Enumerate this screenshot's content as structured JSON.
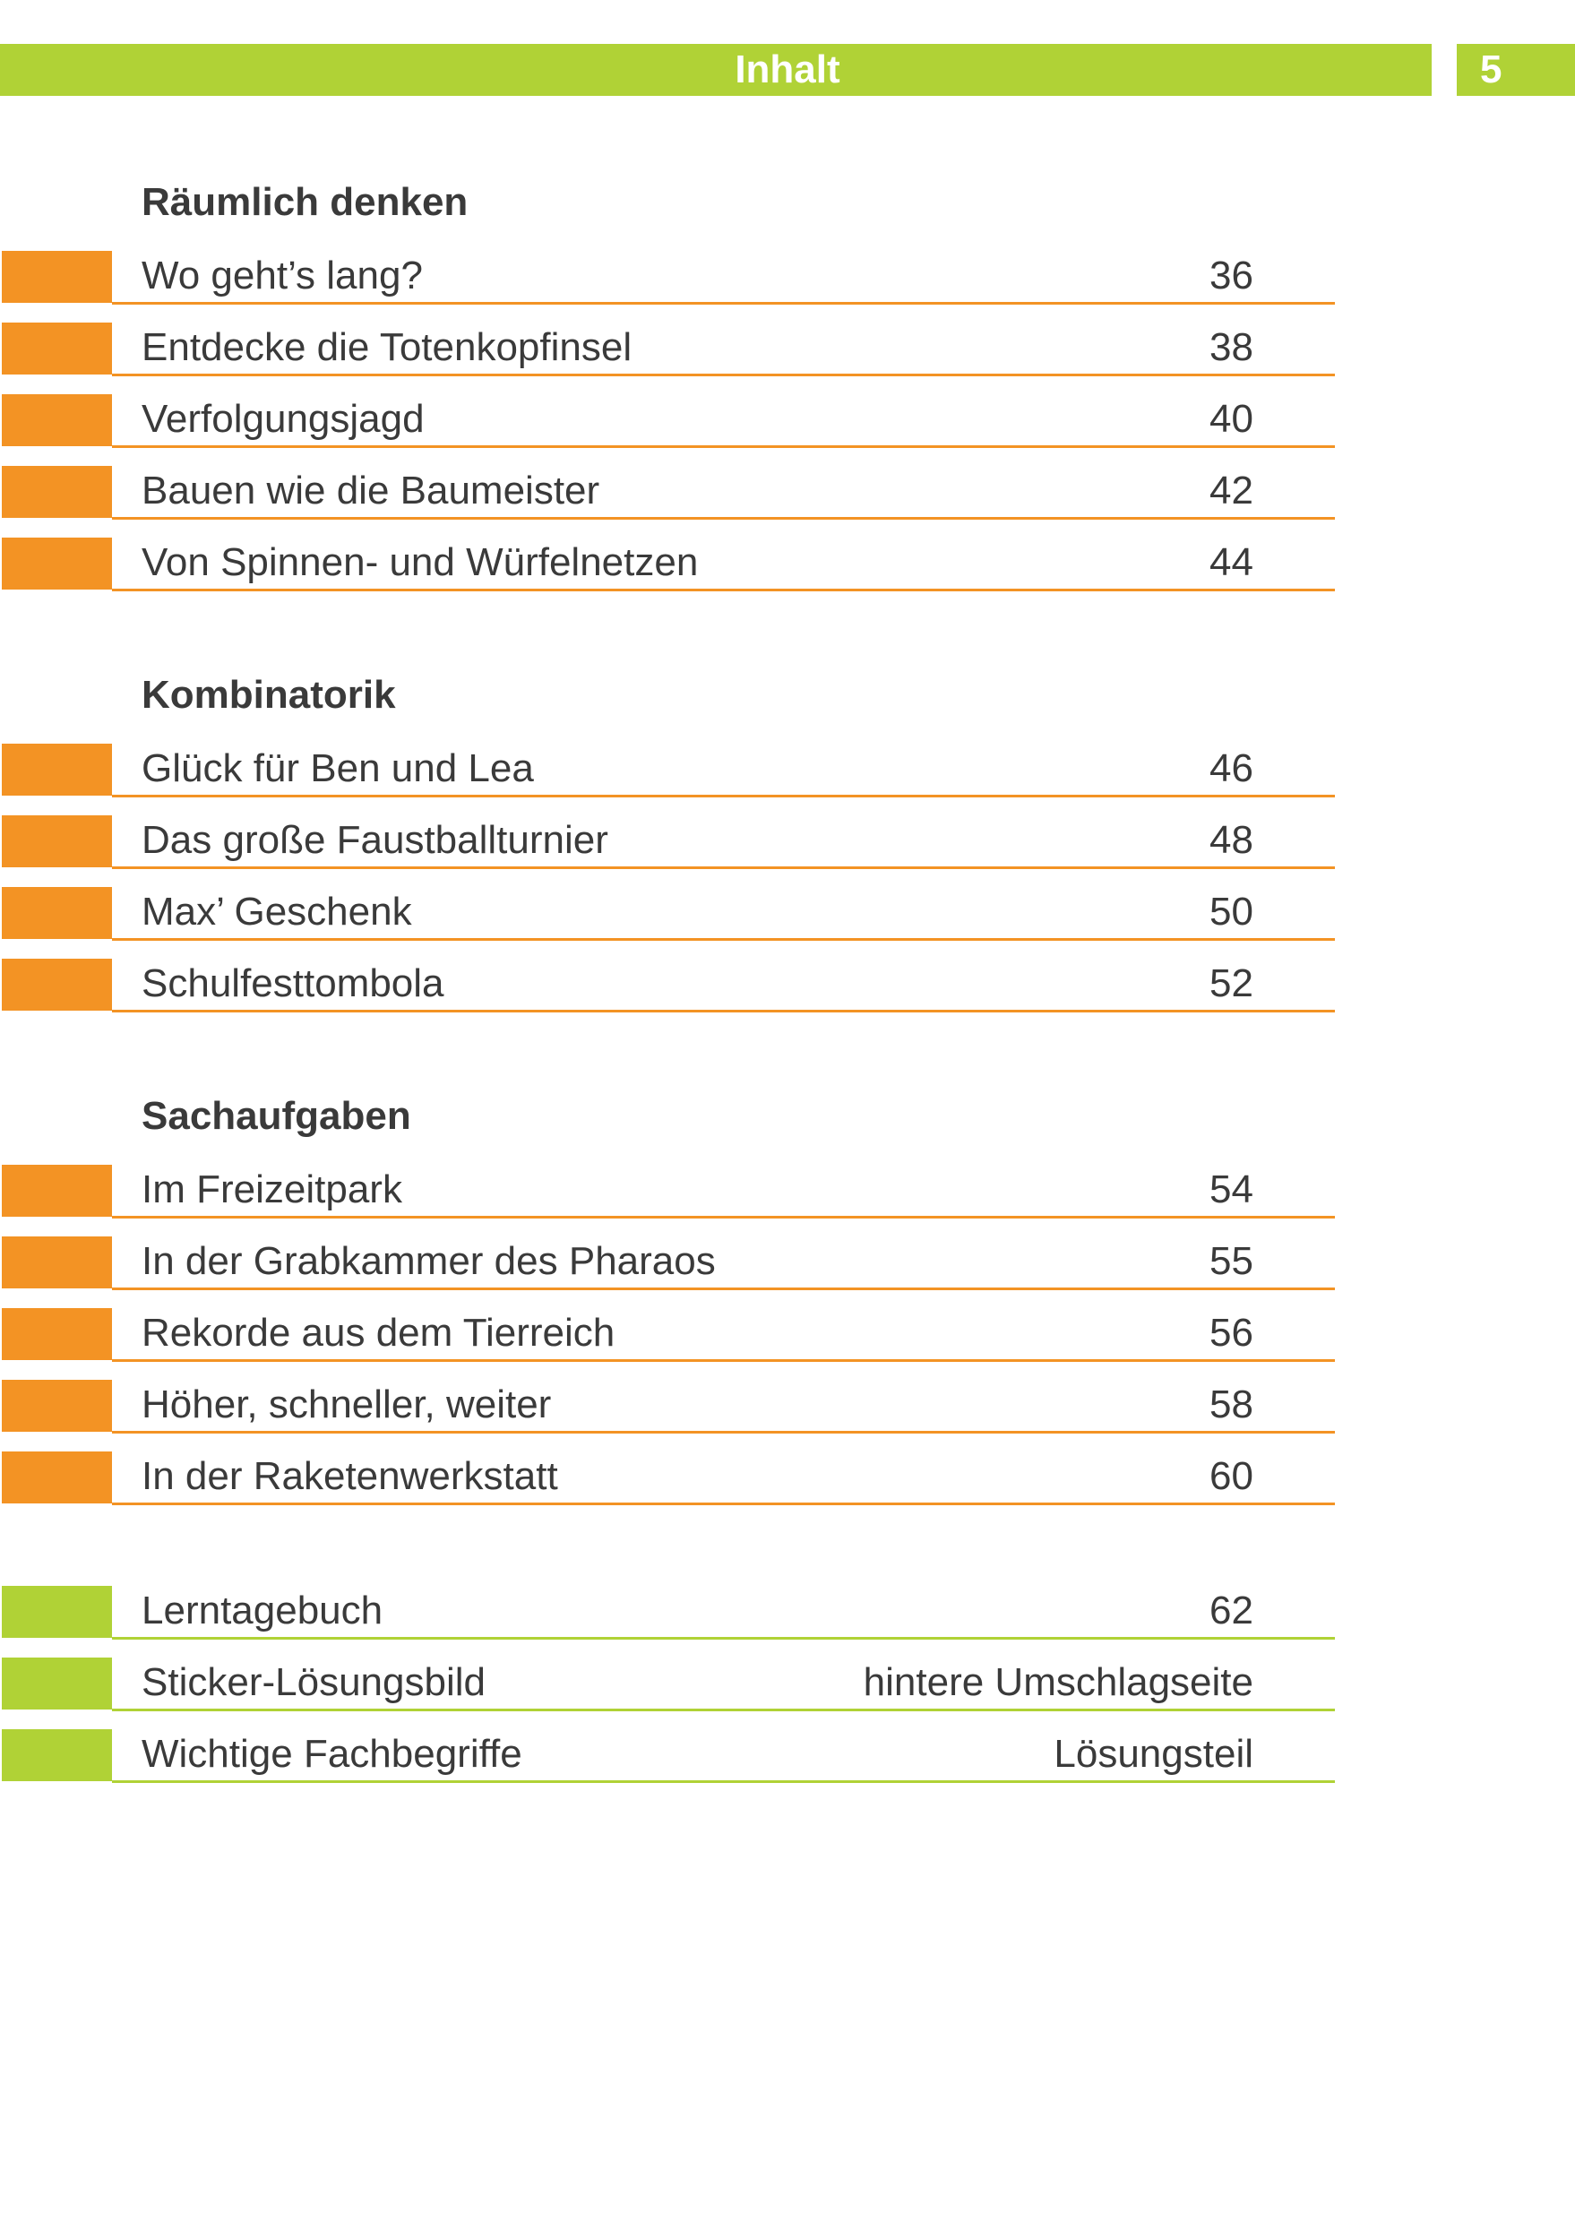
{
  "colors": {
    "green": "#b0d236",
    "orange": "#f39324",
    "text": "#3a3a3a"
  },
  "header": {
    "title": "Inhalt",
    "page_number": "5"
  },
  "sections": [
    {
      "heading": "Räumlich denken",
      "accent": "orange",
      "items": [
        {
          "title": "Wo geht’s lang?",
          "page": "36"
        },
        {
          "title": "Entdecke die Totenkopfinsel",
          "page": "38"
        },
        {
          "title": "Verfolgungsjagd",
          "page": "40"
        },
        {
          "title": "Bauen wie die Baumeister",
          "page": "42"
        },
        {
          "title": "Von Spinnen- und Würfelnetzen",
          "page": "44"
        }
      ]
    },
    {
      "heading": "Kombinatorik",
      "accent": "orange",
      "items": [
        {
          "title": "Glück für Ben und Lea",
          "page": "46"
        },
        {
          "title": "Das große Faustballturnier",
          "page": "48"
        },
        {
          "title": "Max’ Geschenk",
          "page": "50"
        },
        {
          "title": "Schulfesttombola",
          "page": "52"
        }
      ]
    },
    {
      "heading": "Sachaufgaben",
      "accent": "orange",
      "items": [
        {
          "title": "Im Freizeitpark",
          "page": "54"
        },
        {
          "title": "In der Grabkammer des Pharaos",
          "page": "55"
        },
        {
          "title": "Rekorde aus dem Tierreich",
          "page": "56"
        },
        {
          "title": "Höher, schneller, weiter",
          "page": "58"
        },
        {
          "title": "In der Raketenwerkstatt",
          "page": "60"
        }
      ]
    },
    {
      "heading": "",
      "accent": "green",
      "items": [
        {
          "title": "Lerntagebuch",
          "page": "62"
        },
        {
          "title": "Sticker-Lösungsbild",
          "page": "hintere Umschlagseite"
        },
        {
          "title": "Wichtige Fachbegriffe",
          "page": "Lösungsteil"
        }
      ]
    }
  ]
}
